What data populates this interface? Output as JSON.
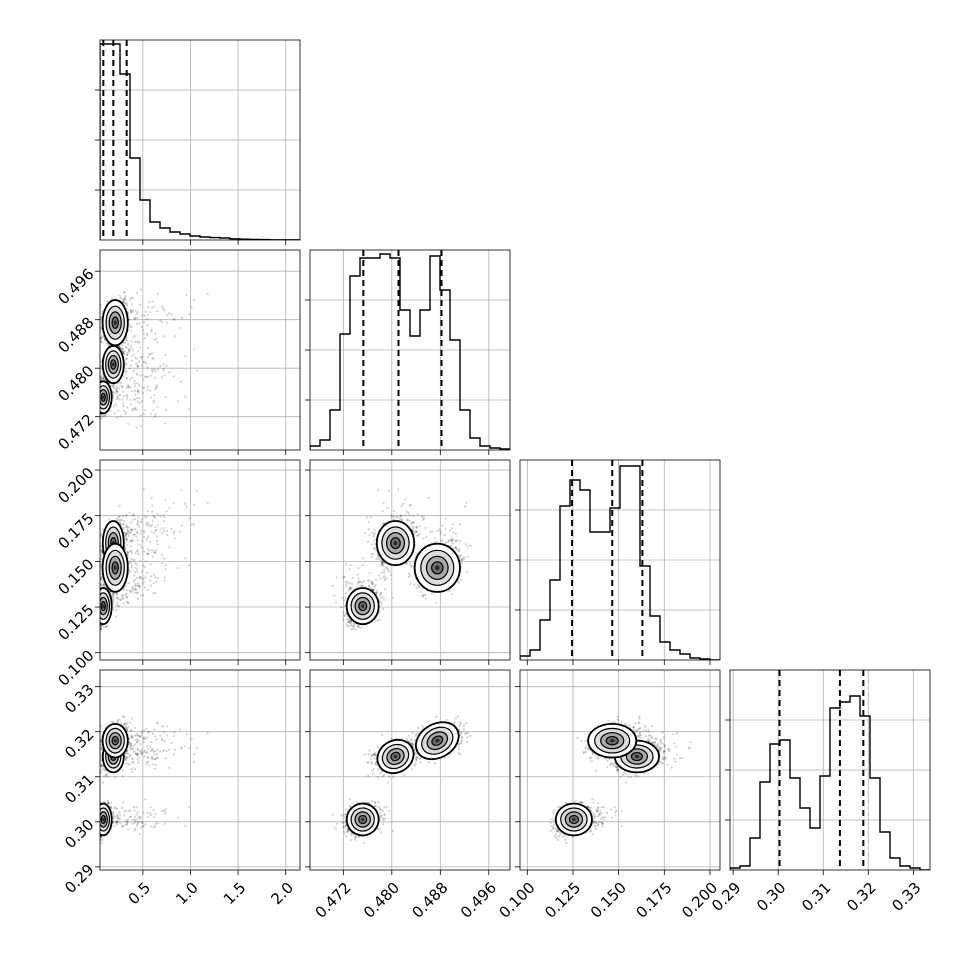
{
  "chart_data": {
    "type": "corner",
    "grid": true,
    "parameters": [
      {
        "index": 0,
        "range": [
          0.05,
          2.15
        ],
        "ticks": [
          0.5,
          1.0,
          1.5,
          2.0
        ],
        "tick_labels": [
          "0.5",
          "1.0",
          "1.5",
          "2.0"
        ],
        "quantiles": [
          0.085,
          0.19,
          0.33
        ],
        "hist": [
          0.98,
          0.98,
          0.83,
          0.41,
          0.2,
          0.09,
          0.06,
          0.04,
          0.03,
          0.02,
          0.015,
          0.012,
          0.01,
          0.006,
          0.004,
          0.003,
          0.002,
          0.001,
          0.001,
          0.001
        ]
      },
      {
        "index": 1,
        "range": [
          0.4665,
          0.4995
        ],
        "ticks": [
          0.472,
          0.48,
          0.488,
          0.496
        ],
        "tick_labels": [
          "0.472",
          "0.480",
          "0.488",
          "0.496"
        ],
        "quantiles": [
          0.4753,
          0.4811,
          0.4882
        ],
        "hist": [
          0.02,
          0.05,
          0.2,
          0.58,
          0.87,
          0.96,
          0.96,
          0.98,
          0.96,
          0.7,
          0.57,
          0.7,
          0.97,
          0.8,
          0.55,
          0.2,
          0.06,
          0.02,
          0.01,
          0.005
        ]
      },
      {
        "index": 2,
        "range": [
          0.096,
          0.2055
        ],
        "ticks": [
          0.1,
          0.125,
          0.15,
          0.175,
          0.2
        ],
        "tick_labels": [
          "0.100",
          "0.125",
          "0.150",
          "0.175",
          "0.200"
        ],
        "quantiles": [
          0.1245,
          0.1465,
          0.163
        ],
        "hist": [
          0.02,
          0.05,
          0.2,
          0.4,
          0.77,
          0.9,
          0.85,
          0.64,
          0.64,
          0.76,
          0.97,
          0.97,
          0.47,
          0.22,
          0.09,
          0.05,
          0.03,
          0.01,
          0.005,
          0.0
        ]
      },
      {
        "index": 3,
        "range": [
          0.2893,
          0.3337
        ],
        "ticks": [
          0.29,
          0.3,
          0.31,
          0.32,
          0.33
        ],
        "tick_labels": [
          "0.29",
          "0.30",
          "0.31",
          "0.32",
          "0.33"
        ],
        "quantiles": [
          0.3003,
          0.3137,
          0.3189
        ],
        "hist": [
          0.01,
          0.02,
          0.16,
          0.44,
          0.63,
          0.65,
          0.46,
          0.31,
          0.21,
          0.47,
          0.81,
          0.84,
          0.87,
          0.77,
          0.46,
          0.19,
          0.06,
          0.02,
          0.01,
          0.0
        ]
      }
    ],
    "modes": [
      {
        "w": 0.33,
        "p": [
          0.085,
          0.4752,
          0.1255,
          0.3005
        ],
        "s": [
          0.04,
          0.0012,
          0.0045,
          0.0016
        ]
      },
      {
        "w": 0.35,
        "p": [
          0.19,
          0.4806,
          0.16,
          0.3145
        ],
        "s": [
          0.05,
          0.0014,
          0.0055,
          0.0016
        ]
      },
      {
        "w": 0.32,
        "p": [
          0.21,
          0.4875,
          0.1465,
          0.318
        ],
        "s": [
          0.06,
          0.0017,
          0.006,
          0.0017
        ]
      }
    ]
  }
}
